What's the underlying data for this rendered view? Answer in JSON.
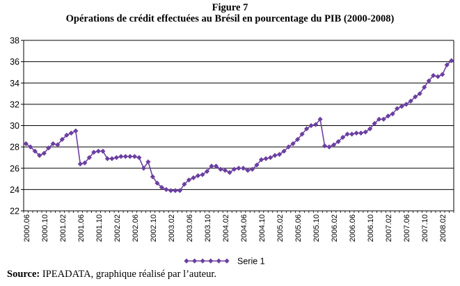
{
  "figure": {
    "label": "Figure 7",
    "title": "Opérations de crédit effectuées au Brésil en pourcentage du PIB (2000-2008)"
  },
  "source": {
    "label": "Source:",
    "text": "IPEADATA, graphique réalisé par l’auteur."
  },
  "colors": {
    "series": "#6b3fa0",
    "grid": "#000000",
    "axis": "#000000"
  },
  "chart_data": {
    "type": "line",
    "title": "Opérations de crédit effectuées au Brésil en pourcentage du PIB (2000-2008)",
    "xlabel": "",
    "ylabel": "",
    "ylim": [
      22,
      38
    ],
    "yticks": [
      22,
      24,
      26,
      28,
      30,
      32,
      34,
      36,
      38
    ],
    "grid": true,
    "legend": "bottom-center",
    "xticks": [
      "2000.06",
      "2000.10",
      "2001.02",
      "2001.06",
      "2001.10",
      "2002.02",
      "2002.06",
      "2002.10",
      "2003.02",
      "2003.06",
      "2003.10",
      "2004.02",
      "2004.06",
      "2004.10",
      "2005.02",
      "2005.06",
      "2005.10",
      "2006.02",
      "2006.06",
      "2006.10",
      "2007.02",
      "2007.06",
      "2007.10",
      "2008.02"
    ],
    "series": [
      {
        "name": "Serie 1",
        "values": [
          28.3,
          28.0,
          27.6,
          27.2,
          27.4,
          27.9,
          28.3,
          28.2,
          28.7,
          29.1,
          29.3,
          29.5,
          26.4,
          26.5,
          27.0,
          27.5,
          27.6,
          27.6,
          26.9,
          26.9,
          27.0,
          27.1,
          27.1,
          27.1,
          27.1,
          27.0,
          26.0,
          26.6,
          25.2,
          24.6,
          24.2,
          24.0,
          23.9,
          23.9,
          23.9,
          24.5,
          24.9,
          25.1,
          25.3,
          25.4,
          25.7,
          26.2,
          26.2,
          25.9,
          25.8,
          25.6,
          25.9,
          26.0,
          26.0,
          25.8,
          25.9,
          26.3,
          26.8,
          26.9,
          27.0,
          27.2,
          27.3,
          27.6,
          28.0,
          28.3,
          28.7,
          29.2,
          29.7,
          30.0,
          30.1,
          30.6,
          28.1,
          28.0,
          28.2,
          28.5,
          28.9,
          29.2,
          29.2,
          29.3,
          29.3,
          29.4,
          29.7,
          30.2,
          30.6,
          30.6,
          30.9,
          31.1,
          31.6,
          31.8,
          32.0,
          32.3,
          32.7,
          33.0,
          33.6,
          34.2,
          34.7,
          34.6,
          34.8,
          35.7,
          36.1
        ]
      }
    ]
  }
}
